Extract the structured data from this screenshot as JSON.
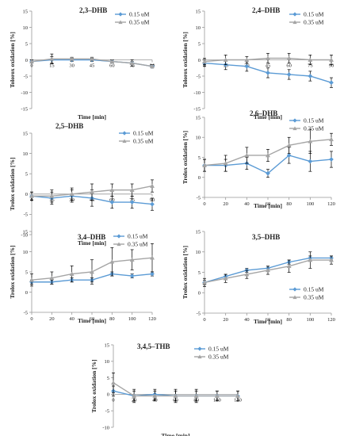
{
  "colors": {
    "series_a": "#5b9bd5",
    "series_b": "#a5a5a5",
    "errorbar": "#000000",
    "axis": "#999999"
  },
  "chart_data": [
    {
      "type": "line",
      "title": "2,3–DHB",
      "xlabel": "Time [min]",
      "ylabel": "Tolorox oxidation [%]",
      "x": [
        0,
        15,
        30,
        45,
        60,
        75,
        90
      ],
      "xlim": [
        0,
        90
      ],
      "ylim": [
        -15,
        15
      ],
      "yticks": [
        -15,
        -10,
        -5,
        0,
        5,
        10,
        15
      ],
      "x_axis_at": 0,
      "legend_position": "top-right",
      "series": [
        {
          "name": "0.15 uM",
          "marker": "diamond",
          "values": [
            -0.5,
            0,
            0,
            0,
            -0.5,
            -1,
            -2
          ],
          "errors": [
            0.5,
            1,
            0.5,
            0.5,
            0.5,
            0.5,
            0.5
          ]
        },
        {
          "name": "0.35 uM",
          "marker": "triangle",
          "values": [
            -0.5,
            0.3,
            0.3,
            0.3,
            -0.5,
            -1,
            -2
          ],
          "errors": [
            0.5,
            1.5,
            0.5,
            0.5,
            0.5,
            1,
            0.5
          ]
        }
      ]
    },
    {
      "type": "line",
      "title": "2,4–DHB",
      "xlabel": "Time [min]",
      "ylabel": "Tolorox oxidation [%]",
      "x": [
        0,
        15,
        30,
        45,
        60,
        75,
        90
      ],
      "xlim": [
        0,
        90
      ],
      "ylim": [
        -15,
        15
      ],
      "yticks": [
        -15,
        -10,
        -5,
        0,
        5,
        10,
        15
      ],
      "x_axis_at": 0,
      "legend_position": "top-right",
      "series": [
        {
          "name": "0.15 uM",
          "marker": "diamond",
          "values": [
            -1,
            -1.5,
            -2,
            -4,
            -4.5,
            -5,
            -7
          ],
          "errors": [
            1,
            1.5,
            1.5,
            1.5,
            1.5,
            1.5,
            1.5
          ]
        },
        {
          "name": "0.35 uM",
          "marker": "triangle",
          "values": [
            -0.5,
            0,
            0,
            0.5,
            0.5,
            0,
            0
          ],
          "errors": [
            1,
            1.5,
            1,
            1.5,
            1.5,
            1.5,
            1.5
          ]
        }
      ]
    },
    {
      "type": "line",
      "title": "2,5–DHB",
      "xlabel": "Time [min]",
      "ylabel": "Trolox oxidation [%]",
      "x": [
        0,
        15,
        30,
        45,
        60,
        75,
        90
      ],
      "xlim": [
        0,
        90
      ],
      "ylim": [
        -10,
        15
      ],
      "yticks": [
        -10,
        -5,
        0,
        5,
        10,
        15
      ],
      "x_axis_at": 0,
      "legend_position": "top-right",
      "series": [
        {
          "name": "0.15 uM",
          "marker": "diamond",
          "values": [
            -0.5,
            -1,
            -0.5,
            -1,
            -2,
            -2,
            -2.5
          ],
          "errors": [
            1,
            1.5,
            1.5,
            2,
            1.5,
            1.5,
            1.5
          ]
        },
        {
          "name": "0.35 uM",
          "marker": "triangle",
          "values": [
            -0.5,
            -0.5,
            0,
            0.5,
            1,
            1,
            2
          ],
          "errors": [
            1,
            1.5,
            1.5,
            2,
            1.5,
            1.5,
            1.5
          ]
        }
      ]
    },
    {
      "type": "line",
      "title": "2,6–DHB",
      "xlabel": "Time [min]",
      "ylabel": "Trolox oxidation [%]",
      "x": [
        0,
        20,
        40,
        60,
        80,
        100,
        120
      ],
      "xlim": [
        0,
        120
      ],
      "ylim": [
        -5,
        15
      ],
      "yticks": [
        -5,
        0,
        5,
        10,
        15
      ],
      "x_axis_at": -5,
      "legend_position": "top-right",
      "series": [
        {
          "name": "0.15 uM",
          "marker": "diamond",
          "values": [
            3,
            3,
            3.5,
            1,
            5.5,
            4,
            4.5
          ],
          "errors": [
            1.5,
            1.5,
            1.5,
            1,
            2,
            2.5,
            2
          ]
        },
        {
          "name": "0.35 uM",
          "marker": "triangle",
          "values": [
            3,
            3.5,
            5.5,
            5.5,
            8,
            9,
            9.5
          ],
          "errors": [
            1.5,
            2,
            2,
            1.5,
            2,
            3,
            1.5
          ]
        }
      ]
    },
    {
      "type": "line",
      "title": "3,4–DHB",
      "xlabel": "Time [min]",
      "ylabel": "Trolox oxidation [%]",
      "x": [
        0,
        20,
        40,
        60,
        80,
        100,
        120
      ],
      "xlim": [
        0,
        120
      ],
      "ylim": [
        -5,
        15
      ],
      "yticks": [
        -5,
        0,
        5,
        10,
        15
      ],
      "x_axis_at": -5,
      "legend_position": "top-right",
      "series": [
        {
          "name": "0.15 uM",
          "marker": "diamond",
          "values": [
            2.5,
            2.5,
            3,
            3,
            4.5,
            4,
            4.5
          ],
          "errors": [
            0.5,
            0.5,
            0.5,
            0.5,
            0.5,
            0.5,
            0.5
          ]
        },
        {
          "name": "0.35 uM",
          "marker": "triangle",
          "values": [
            3,
            3.5,
            4.5,
            5,
            7.5,
            8,
            8.5
          ],
          "errors": [
            1.5,
            1.5,
            2,
            3,
            3.5,
            2.5,
            3.5
          ]
        }
      ]
    },
    {
      "type": "line",
      "title": "3,5–DHB",
      "xlabel": "Time [min]",
      "ylabel": "Trolox oxidation [%]",
      "x": [
        0,
        20,
        40,
        60,
        80,
        100,
        120
      ],
      "xlim": [
        0,
        120
      ],
      "ylim": [
        -5,
        15
      ],
      "yticks": [
        -5,
        0,
        5,
        10,
        15
      ],
      "x_axis_at": -5,
      "legend_position": "right",
      "series": [
        {
          "name": "0.15 uM",
          "marker": "diamond",
          "values": [
            2.5,
            4,
            5.5,
            6,
            7.5,
            8.5,
            8.5
          ],
          "errors": [
            0.5,
            0.5,
            0.5,
            0.5,
            0.5,
            0.5,
            0.5
          ]
        },
        {
          "name": "0.35 uM",
          "marker": "triangle",
          "values": [
            2.5,
            3.5,
            4.5,
            5.5,
            6.5,
            8,
            8
          ],
          "errors": [
            1,
            1,
            1,
            1,
            1.5,
            2,
            1
          ]
        }
      ]
    },
    {
      "type": "line",
      "title": "3,4,5–THB",
      "xlabel": "Time [min]",
      "ylabel": "Trolox oxidation [%]",
      "x": [
        0,
        20,
        40,
        60,
        80,
        100,
        120
      ],
      "xlim": [
        0,
        120
      ],
      "ylim": [
        -10,
        15
      ],
      "yticks": [
        -10,
        -5,
        0,
        5,
        10,
        15
      ],
      "x_axis_at": 0,
      "legend_position": "top-right",
      "series": [
        {
          "name": "0.15 uM",
          "marker": "diamond",
          "values": [
            1,
            -0.5,
            0,
            -0.5,
            -0.5,
            -0.5,
            -0.5
          ],
          "errors": [
            1.5,
            1.5,
            1.5,
            1.5,
            1.5,
            1.5,
            1.5
          ]
        },
        {
          "name": "0.35 uM",
          "marker": "triangle",
          "values": [
            3.5,
            -0.5,
            -0.5,
            -0.5,
            -0.5,
            -0.5,
            -0.5
          ],
          "errors": [
            3,
            2,
            1.5,
            2,
            2,
            1.5,
            1.5
          ]
        }
      ]
    }
  ]
}
